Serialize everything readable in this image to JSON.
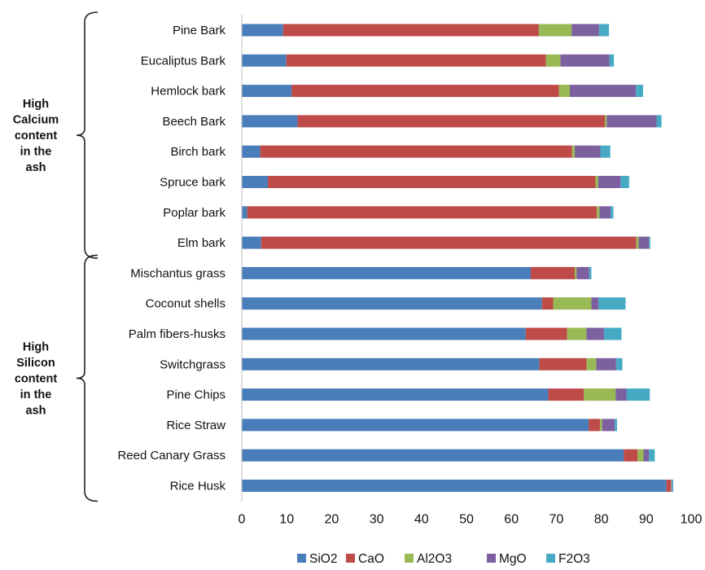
{
  "chart_data": {
    "type": "bar",
    "orientation": "horizontal",
    "stacked": true,
    "categories": [
      "Pine Bark",
      "Eucaliptus Bark",
      "Hemlock bark",
      "Beech Bark",
      "Birch bark",
      "Spruce bark",
      "Poplar bark",
      "Elm bark",
      "Mischantus grass",
      "Coconut shells",
      "Palm fibers-husks",
      "Switchgrass",
      "Pine Chips",
      "Rice Straw",
      "Reed Canary Grass",
      "Rice Husk"
    ],
    "series": [
      {
        "name": "SiO2",
        "color": "#4a7ebb",
        "values": [
          9.2,
          9.9,
          11.1,
          12.4,
          4.1,
          5.8,
          1.2,
          4.3,
          64.3,
          66.8,
          63.2,
          66.2,
          68.2,
          77.2,
          85,
          94.5
        ]
      },
      {
        "name": "CaO",
        "color": "#be4b48",
        "values": [
          56.9,
          57.8,
          59.5,
          68.4,
          69.4,
          72.9,
          77.8,
          83.5,
          9.8,
          2.5,
          9.2,
          10.5,
          7.9,
          2.5,
          3.1,
          1
        ]
      },
      {
        "name": "Al2O3",
        "color": "#98b954",
        "values": [
          7.3,
          3.2,
          2.4,
          0.4,
          0.6,
          0.6,
          0.6,
          0.5,
          0.4,
          8.5,
          4.3,
          2.2,
          7.1,
          0.5,
          1.3,
          0.1
        ]
      },
      {
        "name": "MgO",
        "color": "#7d60a0",
        "values": [
          6.1,
          10.9,
          14.7,
          11.1,
          5.7,
          5,
          2.5,
          2.3,
          2.8,
          1.6,
          3.9,
          4.4,
          2.4,
          2.8,
          1.2,
          0.2
        ]
      },
      {
        "name": "F2O3",
        "color": "#46aac5",
        "values": [
          2.2,
          1,
          1.6,
          1.1,
          2.2,
          1.9,
          0.6,
          0.3,
          0.5,
          6,
          3.9,
          1.4,
          5.2,
          0.5,
          1.3,
          0.2
        ]
      }
    ],
    "xlim": [
      0,
      100
    ],
    "xticks": [
      0,
      10,
      20,
      30,
      40,
      50,
      60,
      70,
      80,
      90,
      100
    ],
    "grid": false,
    "legend": "bottom-center",
    "groups": [
      {
        "label_lines": [
          "High",
          "Calcium",
          "content",
          "in the",
          "ash"
        ],
        "from": 0,
        "to": 7
      },
      {
        "label_lines": [
          "High",
          "Silicon",
          "content",
          "in the",
          "ash"
        ],
        "from": 8,
        "to": 15
      }
    ]
  }
}
